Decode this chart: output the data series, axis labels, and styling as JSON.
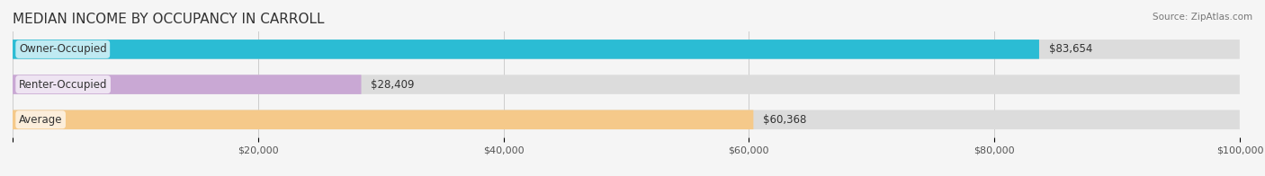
{
  "title": "MEDIAN INCOME BY OCCUPANCY IN CARROLL",
  "source": "Source: ZipAtlas.com",
  "categories": [
    "Owner-Occupied",
    "Renter-Occupied",
    "Average"
  ],
  "values": [
    83654,
    28409,
    60368
  ],
  "bar_colors": [
    "#2bbcd4",
    "#c9a8d4",
    "#f5c98a"
  ],
  "bar_edge_colors": [
    "#2bbcd4",
    "#c9a8d4",
    "#f5c98a"
  ],
  "value_labels": [
    "$83,654",
    "$28,409",
    "$60,368"
  ],
  "xlim": [
    0,
    100000
  ],
  "xticks": [
    0,
    20000,
    40000,
    60000,
    80000,
    100000
  ],
  "xtick_labels": [
    "",
    "$20,000",
    "$40,000",
    "$60,000",
    "$80,000",
    "$100,000"
  ],
  "background_color": "#f0f0f0",
  "bar_bg_color": "#e8e8e8",
  "title_fontsize": 11,
  "label_fontsize": 8.5,
  "value_fontsize": 8.5,
  "bar_height": 0.55,
  "bar_gap": 0.15
}
